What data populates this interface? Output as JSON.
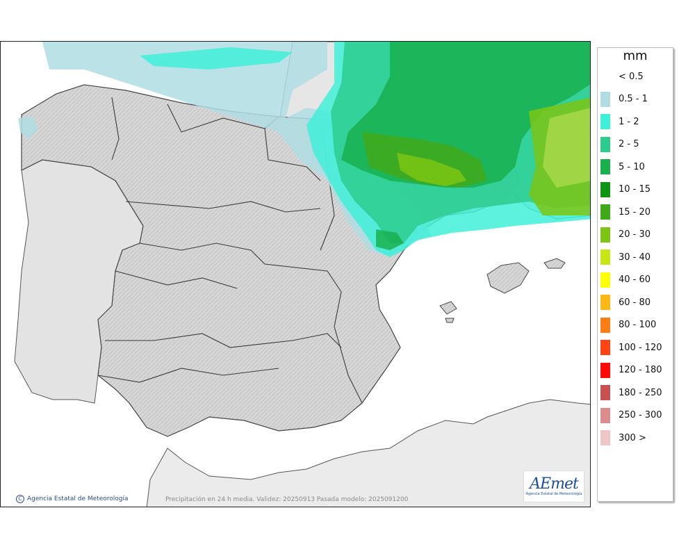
{
  "map": {
    "credit": "Agencia Estatal de Meteorología",
    "caption": "Precipitación en 24 h media. Validez: 20250913 Pasada modelo: 2025091200",
    "logo_text": "AEmet",
    "logo_subtitle": "Agencia Estatal de Meteorología"
  },
  "legend": {
    "title": "mm",
    "items": [
      {
        "label": "< 0.5",
        "color": "#ffffff"
      },
      {
        "label": "0.5 - 1",
        "color": "#afdde3"
      },
      {
        "label": "1 - 2",
        "color": "#3ff0d8"
      },
      {
        "label": "2 - 5",
        "color": "#2dcc8e"
      },
      {
        "label": "5 - 10",
        "color": "#1ab04d"
      },
      {
        "label": "10 - 15",
        "color": "#0f9414"
      },
      {
        "label": "15 - 20",
        "color": "#3fa91a"
      },
      {
        "label": "20 - 30",
        "color": "#7dc514"
      },
      {
        "label": "30 - 40",
        "color": "#c8e614"
      },
      {
        "label": "40 - 60",
        "color": "#ffff00"
      },
      {
        "label": "60 - 80",
        "color": "#fcb814"
      },
      {
        "label": "80 - 100",
        "color": "#fa7e14"
      },
      {
        "label": "100 - 120",
        "color": "#ff4414"
      },
      {
        "label": "120 - 180",
        "color": "#ff0a0a"
      },
      {
        "label": "180 - 250",
        "color": "#c85050"
      },
      {
        "label": "250 - 300",
        "color": "#dc8c8c"
      },
      {
        "label": "300 >",
        "color": "#eec6c6"
      }
    ]
  }
}
